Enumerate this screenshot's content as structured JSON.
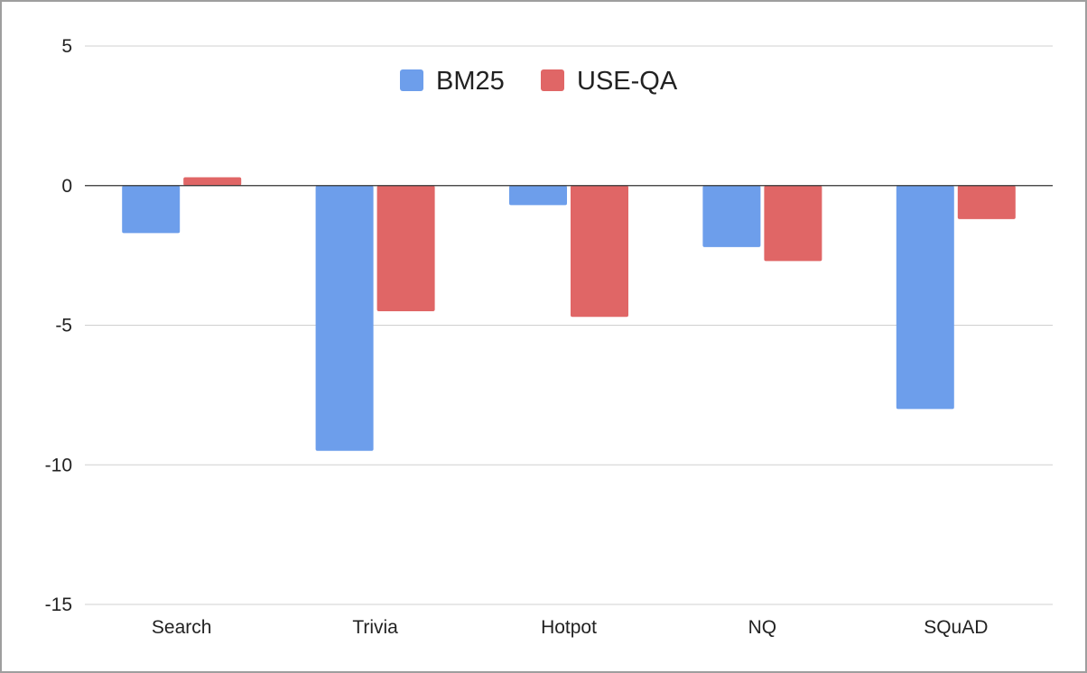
{
  "chart_data": {
    "type": "bar",
    "title": "",
    "xlabel": "",
    "ylabel": "",
    "categories": [
      "Search",
      "Trivia",
      "Hotpot",
      "NQ",
      "SQuAD"
    ],
    "series": [
      {
        "name": "BM25",
        "color": "#6d9eeb",
        "values": [
          -1.7,
          -9.5,
          -0.7,
          -2.2,
          -8.0
        ]
      },
      {
        "name": "USE-QA",
        "color": "#e06666",
        "values": [
          0.3,
          -4.5,
          -4.7,
          -2.7,
          -1.2
        ]
      }
    ],
    "ylim": [
      -15,
      5
    ],
    "yticks": [
      5,
      0,
      -5,
      -10,
      -15
    ],
    "grid": true,
    "legend": "top-center"
  }
}
